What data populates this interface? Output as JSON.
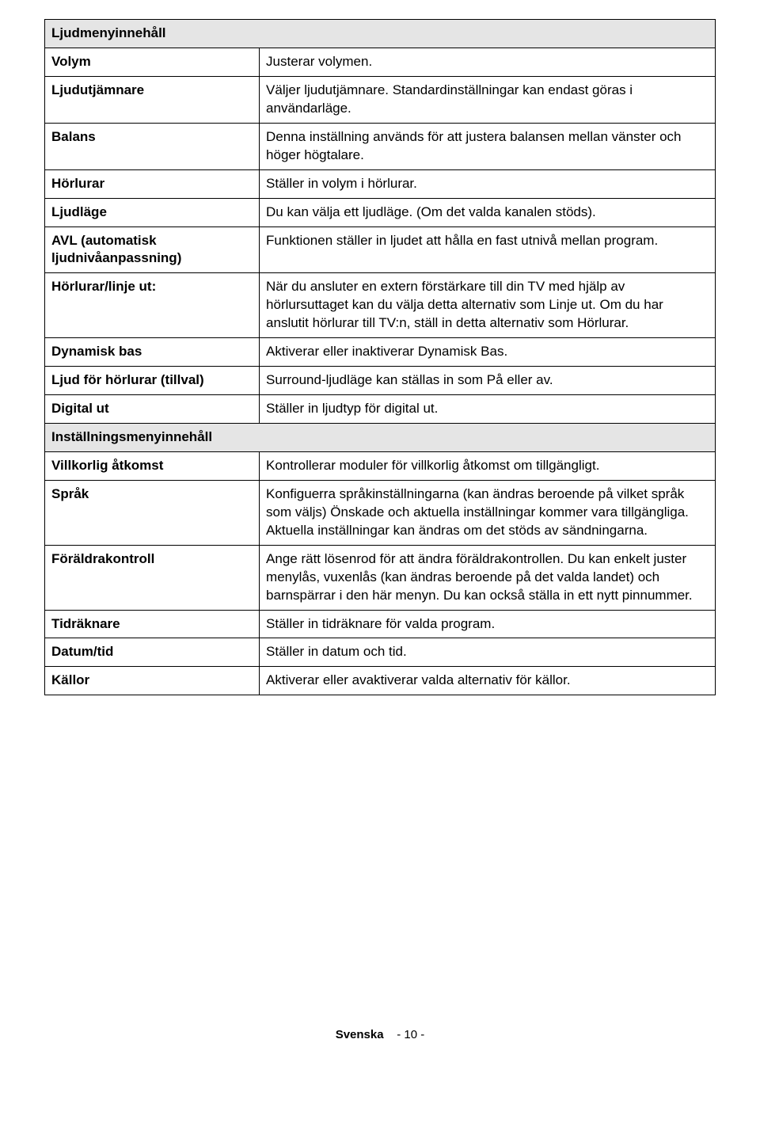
{
  "sound_section_title": "Ljudmenyinnehåll",
  "sound_rows": [
    {
      "label": "Volym",
      "desc": "Justerar volymen."
    },
    {
      "label": "Ljudutjämnare",
      "desc": "Väljer ljudutjämnare. Standardinställningar kan endast göras i användarläge."
    },
    {
      "label": "Balans",
      "desc": "Denna inställning används för att justera balansen mellan vänster och höger högtalare."
    },
    {
      "label": "Hörlurar",
      "desc": "Ställer in volym i hörlurar."
    },
    {
      "label": "Ljudläge",
      "desc": "Du kan välja ett ljudläge. (Om det valda kanalen stöds)."
    },
    {
      "label": "AVL (automatisk ljudnivåanpassning)",
      "desc": "Funktionen ställer in ljudet att hålla en fast utnivå mellan program."
    },
    {
      "label": "Hörlurar/linje ut:",
      "desc": "När du ansluter en extern förstärkare till din TV med hjälp av hörlursuttaget kan du välja detta alternativ som Linje ut. Om du har anslutit hörlurar till TV:n, ställ in detta alternativ som Hörlurar."
    },
    {
      "label": "Dynamisk bas",
      "desc": "Aktiverar eller inaktiverar Dynamisk Bas."
    },
    {
      "label": "Ljud för hörlurar (tillval)",
      "desc": "Surround-ljudläge kan ställas in som På eller av."
    },
    {
      "label": "Digital ut",
      "desc": "Ställer in ljudtyp för digital ut."
    }
  ],
  "settings_section_title": "Inställningsmenyinnehåll",
  "settings_rows": [
    {
      "label": "Villkorlig åtkomst",
      "desc": "Kontrollerar moduler för villkorlig åtkomst om tillgängligt."
    },
    {
      "label": "Språk",
      "desc": "Konfiguerra språkinställningarna (kan ändras beroende på vilket språk som väljs) Önskade och aktuella inställningar kommer vara tillgängliga. Aktuella inställningar kan ändras om det stöds av sändningarna."
    },
    {
      "label": "Föräldrakontroll",
      "desc": "Ange rätt lösenrod för att ändra föräldrakontrollen. Du kan enkelt juster menylås, vuxenlås (kan ändras beroende på det valda landet) och barnspärrar i den här menyn. Du kan också ställa in ett nytt pinnummer."
    },
    {
      "label": "Tidräknare",
      "desc": "Ställer in tidräknare för valda program."
    },
    {
      "label": "Datum/tid",
      "desc": "Ställer in datum och tid."
    },
    {
      "label": "Källor",
      "desc": "Aktiverar eller avaktiverar valda alternativ för källor."
    }
  ],
  "footer": {
    "language": "Svenska",
    "page": "- 10 -"
  }
}
